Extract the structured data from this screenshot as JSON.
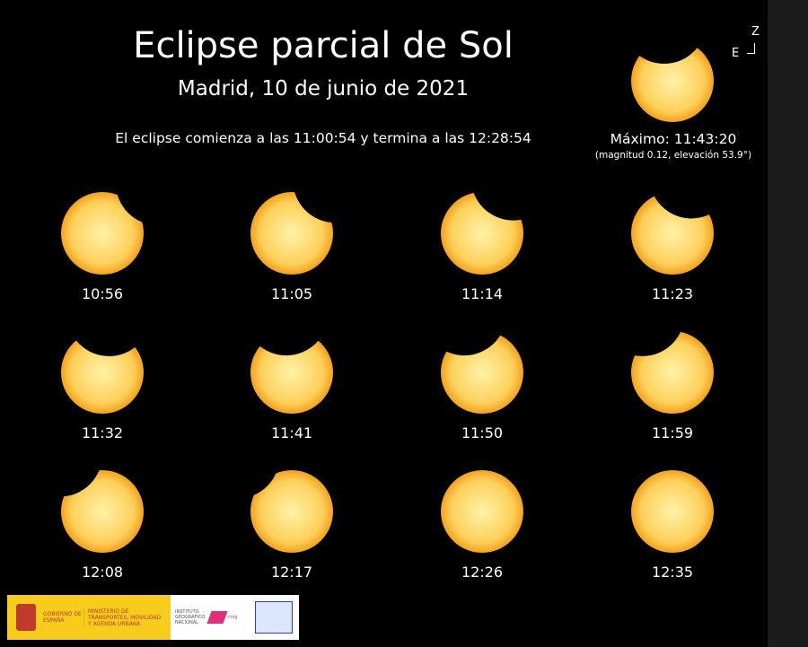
{
  "title": "Eclipse parcial de Sol",
  "subtitle": "Madrid, 10 de junio de 2021",
  "range_text": "El eclipse comienza a las 11:00:54 y termina a las 12:28:54",
  "maximum": {
    "label": "Máximo: 11:43:20",
    "details": "(magnitud 0.12, elevación 53.9°)"
  },
  "compass": {
    "north": "Z",
    "east": "E"
  },
  "frames": [
    "10:56",
    "11:05",
    "11:14",
    "11:23",
    "11:32",
    "11:41",
    "11:50",
    "11:59",
    "12:08",
    "12:17",
    "12:26",
    "12:35"
  ],
  "logos": {
    "gobierno": "GOBIERNO DE ESPAÑA",
    "ministerio": "MINISTERIO DE TRANSPORTES, MOVILIDAD Y AGENDA URBANA",
    "ign": "INSTITUTO GEOGRÁFICO NACIONAL",
    "cnig": "cnig"
  },
  "colors": {
    "sun_center": "#fff2a8",
    "sun_edge": "#f5a623",
    "background": "#000000"
  }
}
